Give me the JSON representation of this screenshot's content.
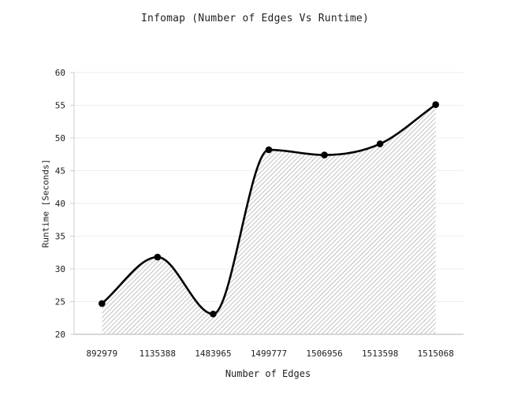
{
  "chart_data": {
    "type": "area",
    "title": "Infomap (Number of Edges Vs Runtime)",
    "xlabel": "Number of Edges",
    "ylabel": "Runtime [Seconds]",
    "categories": [
      "892979",
      "1135388",
      "1483965",
      "1499777",
      "1506956",
      "1513598",
      "1515068"
    ],
    "series": [
      {
        "values": [
          24.7,
          31.8,
          23.1,
          48.2,
          47.4,
          49.1,
          55.1
        ]
      }
    ],
    "ylim": [
      20,
      60
    ],
    "yticks": [
      20,
      25,
      30,
      35,
      40,
      45,
      50,
      55,
      60
    ],
    "grid": true,
    "legend": "none",
    "fill": "hatched",
    "colors": {
      "line": "#000000",
      "hatch": "#a8a8a8",
      "grid": "#eeeeee",
      "axis": "#cccccc"
    }
  }
}
